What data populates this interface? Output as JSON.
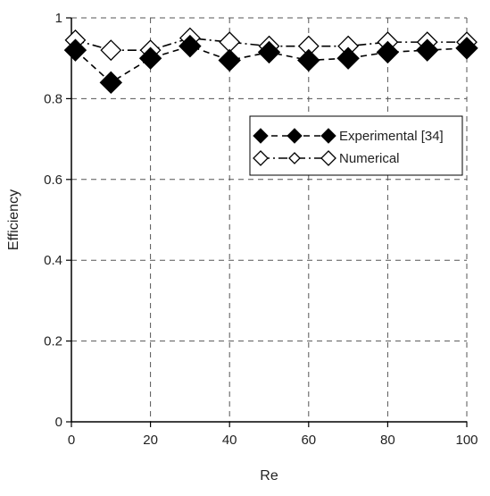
{
  "chart_data": {
    "type": "line",
    "title": "",
    "xlabel": "Re",
    "ylabel": "Efficiency",
    "xlim": [
      0,
      100
    ],
    "ylim": [
      0,
      1
    ],
    "xticks": [
      "0",
      "20",
      "40",
      "60",
      "80",
      "100"
    ],
    "yticks": [
      "0",
      "0.2",
      "0.4",
      "0.6",
      "0.8",
      "1"
    ],
    "grid": true,
    "legend_position": "right",
    "series": [
      {
        "name": "Experimental [34]",
        "marker": "filled-diamond",
        "line": "dashed",
        "color": "#000000",
        "x": [
          1,
          10,
          20,
          30,
          40,
          50,
          60,
          70,
          80,
          90,
          100
        ],
        "y": [
          0.92,
          0.84,
          0.9,
          0.93,
          0.895,
          0.915,
          0.895,
          0.9,
          0.915,
          0.92,
          0.925
        ]
      },
      {
        "name": "Numerical",
        "marker": "open-diamond",
        "line": "dash-dot",
        "color": "#000000",
        "x": [
          1,
          10,
          20,
          30,
          40,
          50,
          60,
          70,
          80,
          90,
          100
        ],
        "y": [
          0.945,
          0.92,
          0.92,
          0.95,
          0.94,
          0.93,
          0.93,
          0.93,
          0.94,
          0.94,
          0.94
        ]
      }
    ]
  }
}
